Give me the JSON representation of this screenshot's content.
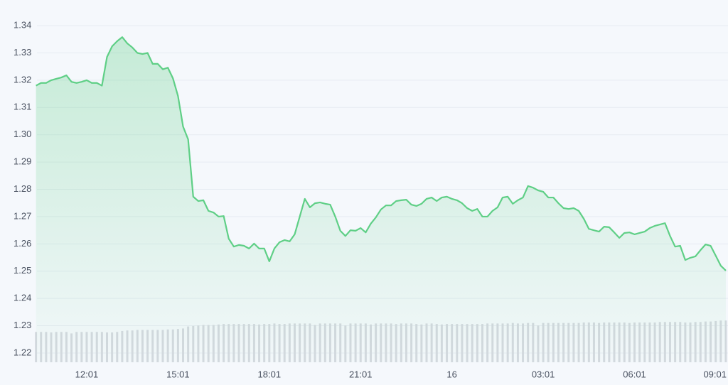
{
  "chart_data": {
    "type": "line",
    "color": "#5fcf86",
    "categories": [
      null,
      null,
      null,
      null,
      null,
      null,
      null,
      null,
      null,
      null,
      "12:01",
      null,
      null,
      null,
      null,
      null,
      null,
      null,
      null,
      null,
      null,
      null,
      null,
      null,
      null,
      null,
      null,
      null,
      "15:01",
      null,
      null,
      null,
      null,
      null,
      null,
      null,
      null,
      null,
      null,
      null,
      null,
      null,
      null,
      null,
      null,
      null,
      "18:01",
      null,
      null,
      null,
      null,
      null,
      null,
      null,
      null,
      null,
      null,
      null,
      null,
      null,
      null,
      null,
      null,
      null,
      "21:01",
      null,
      null,
      null,
      null,
      null,
      null,
      null,
      null,
      null,
      null,
      null,
      null,
      null,
      null,
      null,
      null,
      null,
      "16",
      null,
      null,
      null,
      null,
      null,
      null,
      null,
      null,
      null,
      null,
      null,
      null,
      null,
      null,
      null,
      null,
      null,
      "03:01",
      null,
      null,
      null,
      null,
      null,
      null,
      null,
      null,
      null,
      null,
      null,
      null,
      null,
      null,
      null,
      null,
      null,
      "06:01",
      null,
      null,
      null,
      null,
      null,
      null,
      null,
      null,
      null,
      null,
      null,
      null,
      null,
      null,
      null,
      null,
      null,
      "09:01"
    ],
    "values": [
      1.318,
      1.319,
      1.319,
      1.32,
      1.3205,
      1.321,
      1.3218,
      1.3194,
      1.319,
      1.3194,
      1.32,
      1.319,
      1.319,
      1.318,
      1.3285,
      1.3324,
      1.3343,
      1.3358,
      1.3335,
      1.332,
      1.33,
      1.3296,
      1.33,
      1.326,
      1.326,
      1.324,
      1.3246,
      1.3207,
      1.3142,
      1.303,
      1.2983,
      1.2773,
      1.2757,
      1.276,
      1.2721,
      1.2715,
      1.27,
      1.2702,
      1.2619,
      1.259,
      1.2596,
      1.2593,
      1.2583,
      1.2601,
      1.2583,
      1.2583,
      1.2536,
      1.2583,
      1.2606,
      1.2614,
      1.2609,
      1.2635,
      1.27,
      1.2765,
      1.2734,
      1.2749,
      1.2752,
      1.2747,
      1.2744,
      1.27,
      1.2648,
      1.2629,
      1.265,
      1.2648,
      1.2658,
      1.2642,
      1.2674,
      1.2697,
      1.2726,
      1.2741,
      1.2741,
      1.2757,
      1.276,
      1.2762,
      1.2744,
      1.2739,
      1.2747,
      1.2765,
      1.277,
      1.2757,
      1.277,
      1.2773,
      1.2765,
      1.276,
      1.2749,
      1.2731,
      1.2721,
      1.2728,
      1.27,
      1.27,
      1.2721,
      1.2734,
      1.277,
      1.2773,
      1.2747,
      1.276,
      1.277,
      1.2812,
      1.2806,
      1.2796,
      1.2791,
      1.277,
      1.277,
      1.2749,
      1.2731,
      1.2728,
      1.2731,
      1.2721,
      1.2692,
      1.2655,
      1.265,
      1.2645,
      1.2663,
      1.2661,
      1.2642,
      1.2622,
      1.264,
      1.2642,
      1.2635,
      1.264,
      1.2645,
      1.2658,
      1.2666,
      1.2671,
      1.2676,
      1.2629,
      1.259,
      1.2593,
      1.2541,
      1.2549,
      1.2554,
      1.2577,
      1.2598,
      1.2593,
      1.2557,
      1.252,
      1.2502
    ],
    "ylim": [
      1.2166,
      1.3494
    ],
    "yticks": [
      1.22,
      1.23,
      1.24,
      1.25,
      1.26,
      1.27,
      1.28,
      1.29,
      {
        "value": 1.3,
        "label": "1.30"
      },
      1.31,
      1.32,
      1.33,
      1.34
    ],
    "grid": true,
    "volume": {
      "color": "#d5d9e0",
      "ylim": [
        0,
        100
      ],
      "values": [
        61,
        61,
        61,
        60,
        61,
        61,
        61,
        58,
        61,
        61,
        61,
        61,
        61,
        61,
        60,
        60,
        61,
        63,
        64,
        64,
        65,
        65,
        65,
        65,
        65,
        65,
        66,
        66,
        67,
        68,
        72,
        73,
        74,
        75,
        75,
        75,
        76,
        77,
        77,
        77,
        77,
        77,
        77,
        77,
        76,
        77,
        77,
        78,
        77,
        77,
        78,
        78,
        78,
        78,
        78,
        75,
        78,
        78,
        78,
        78,
        78,
        74,
        78,
        78,
        78,
        78,
        76,
        78,
        78,
        78,
        78,
        77,
        78,
        78,
        78,
        77,
        76,
        78,
        78,
        77,
        76,
        77,
        77,
        77,
        77,
        77,
        77,
        77,
        77,
        78,
        78,
        78,
        78,
        78,
        79,
        78,
        78,
        79,
        79,
        74,
        79,
        79,
        79,
        79,
        79,
        79,
        79,
        79,
        80,
        80,
        80,
        79,
        80,
        80,
        80,
        80,
        80,
        79,
        80,
        80,
        80,
        80,
        80,
        81,
        81,
        81,
        81,
        81,
        80,
        80,
        81,
        81,
        82,
        82,
        83,
        84,
        84
      ]
    }
  }
}
